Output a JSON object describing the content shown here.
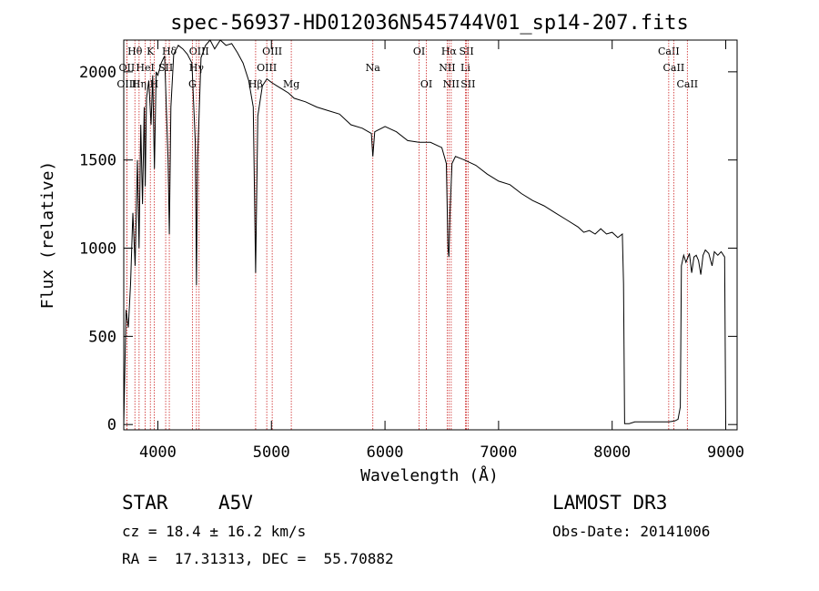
{
  "chart_data": {
    "type": "line",
    "title": "spec-56937-HD012036N545744V01_sp14-207.fits",
    "xlabel": "Wavelength (Å)",
    "ylabel": "Flux (relative)",
    "xlim": [
      3700,
      9100
    ],
    "ylim": [
      -30,
      2180
    ],
    "xticks": [
      4000,
      5000,
      6000,
      7000,
      8000,
      9000
    ],
    "yticks": [
      0,
      500,
      1000,
      1500,
      2000
    ],
    "series": [
      {
        "name": "flux",
        "x": [
          3700,
          3720,
          3740,
          3760,
          3780,
          3800,
          3820,
          3835,
          3850,
          3865,
          3880,
          3889,
          3900,
          3920,
          3940,
          3955,
          3970,
          3985,
          4000,
          4030,
          4060,
          4090,
          4101,
          4115,
          4140,
          4180,
          4220,
          4260,
          4300,
          4330,
          4340,
          4350,
          4380,
          4420,
          4460,
          4500,
          4550,
          4600,
          4650,
          4700,
          4750,
          4800,
          4840,
          4861,
          4880,
          4920,
          4960,
          5000,
          5050,
          5100,
          5150,
          5200,
          5300,
          5400,
          5500,
          5600,
          5700,
          5800,
          5880,
          5893,
          5910,
          6000,
          6100,
          6200,
          6300,
          6400,
          6500,
          6540,
          6555,
          6563,
          6572,
          6590,
          6620,
          6700,
          6800,
          6900,
          7000,
          7100,
          7200,
          7300,
          7400,
          7500,
          7600,
          7700,
          7750,
          7800,
          7850,
          7900,
          7950,
          8000,
          8050,
          8090,
          8100,
          8110,
          8150,
          8200,
          8300,
          8400,
          8500,
          8550,
          8580,
          8600,
          8610,
          8630,
          8650,
          8680,
          8700,
          8720,
          8740,
          8760,
          8780,
          8800,
          8820,
          8850,
          8880,
          8900,
          8930,
          8960,
          8990,
          9000
        ],
        "y": [
          0,
          650,
          550,
          800,
          1200,
          900,
          1500,
          1000,
          1700,
          1250,
          1800,
          1350,
          1850,
          1950,
          1700,
          1980,
          1450,
          2000,
          1980,
          2050,
          2090,
          1500,
          1080,
          1800,
          2100,
          2150,
          2130,
          2100,
          2050,
          1600,
          790,
          1500,
          2080,
          2150,
          2180,
          2130,
          2200,
          2150,
          2160,
          2110,
          2050,
          1950,
          1800,
          860,
          1750,
          1920,
          1960,
          1940,
          1920,
          1900,
          1880,
          1850,
          1830,
          1800,
          1780,
          1760,
          1700,
          1680,
          1650,
          1520,
          1660,
          1690,
          1660,
          1610,
          1600,
          1600,
          1570,
          1480,
          1000,
          950,
          1200,
          1480,
          1520,
          1500,
          1470,
          1420,
          1380,
          1360,
          1310,
          1270,
          1240,
          1200,
          1160,
          1120,
          1090,
          1100,
          1080,
          1110,
          1080,
          1090,
          1060,
          1080,
          800,
          5,
          5,
          15,
          15,
          15,
          15,
          20,
          30,
          100,
          900,
          960,
          920,
          970,
          860,
          950,
          960,
          930,
          850,
          960,
          990,
          970,
          900,
          980,
          960,
          980,
          950,
          0
        ],
        "color": "#000000"
      }
    ],
    "line_labels": [
      {
        "label": "Hθ",
        "x": 3798,
        "row": 0
      },
      {
        "label": "OII",
        "x": 3727,
        "row": 1
      },
      {
        "label": "OIII",
        "x": 3727,
        "row": 2
      },
      {
        "label": "K",
        "x": 3934,
        "row": 0
      },
      {
        "label": "HeI",
        "x": 3889,
        "row": 1
      },
      {
        "label": "Hη",
        "x": 3835,
        "row": 2
      },
      {
        "label": "Hδ",
        "x": 4101,
        "row": 0
      },
      {
        "label": "SII",
        "x": 4069,
        "row": 1
      },
      {
        "label": "H",
        "x": 3968,
        "row": 2
      },
      {
        "label": "OIII",
        "x": 4363,
        "row": 0
      },
      {
        "label": "Hγ",
        "x": 4340,
        "row": 1
      },
      {
        "label": "G",
        "x": 4304,
        "row": 2
      },
      {
        "label": "OIII",
        "x": 5007,
        "row": 0
      },
      {
        "label": "OIII",
        "x": 4959,
        "row": 1
      },
      {
        "label": "Hβ",
        "x": 4861,
        "row": 2
      },
      {
        "label": "Mg",
        "x": 5175,
        "row": 2
      },
      {
        "label": "Na",
        "x": 5893,
        "row": 1
      },
      {
        "label": "OI",
        "x": 6300,
        "row": 0
      },
      {
        "label": "OI",
        "x": 6364,
        "row": 2
      },
      {
        "label": "Hα",
        "x": 6563,
        "row": 0
      },
      {
        "label": "NII",
        "x": 6548,
        "row": 1
      },
      {
        "label": "NII",
        "x": 6583,
        "row": 2
      },
      {
        "label": "SII",
        "x": 6717,
        "row": 0
      },
      {
        "label": "Li",
        "x": 6708,
        "row": 1
      },
      {
        "label": "SII",
        "x": 6731,
        "row": 2
      },
      {
        "label": "CaII",
        "x": 8498,
        "row": 0
      },
      {
        "label": "CaII",
        "x": 8542,
        "row": 1
      },
      {
        "label": "CaII",
        "x": 8662,
        "row": 2
      }
    ]
  },
  "info": {
    "class": "STAR",
    "subclass": "A5V",
    "survey": "LAMOST DR3",
    "cz": "cz = 18.4 ± 16.2 km/s",
    "obs_date": "Obs-Date: 20141006",
    "radec": "RA =  17.31313, DEC =  55.70882"
  }
}
